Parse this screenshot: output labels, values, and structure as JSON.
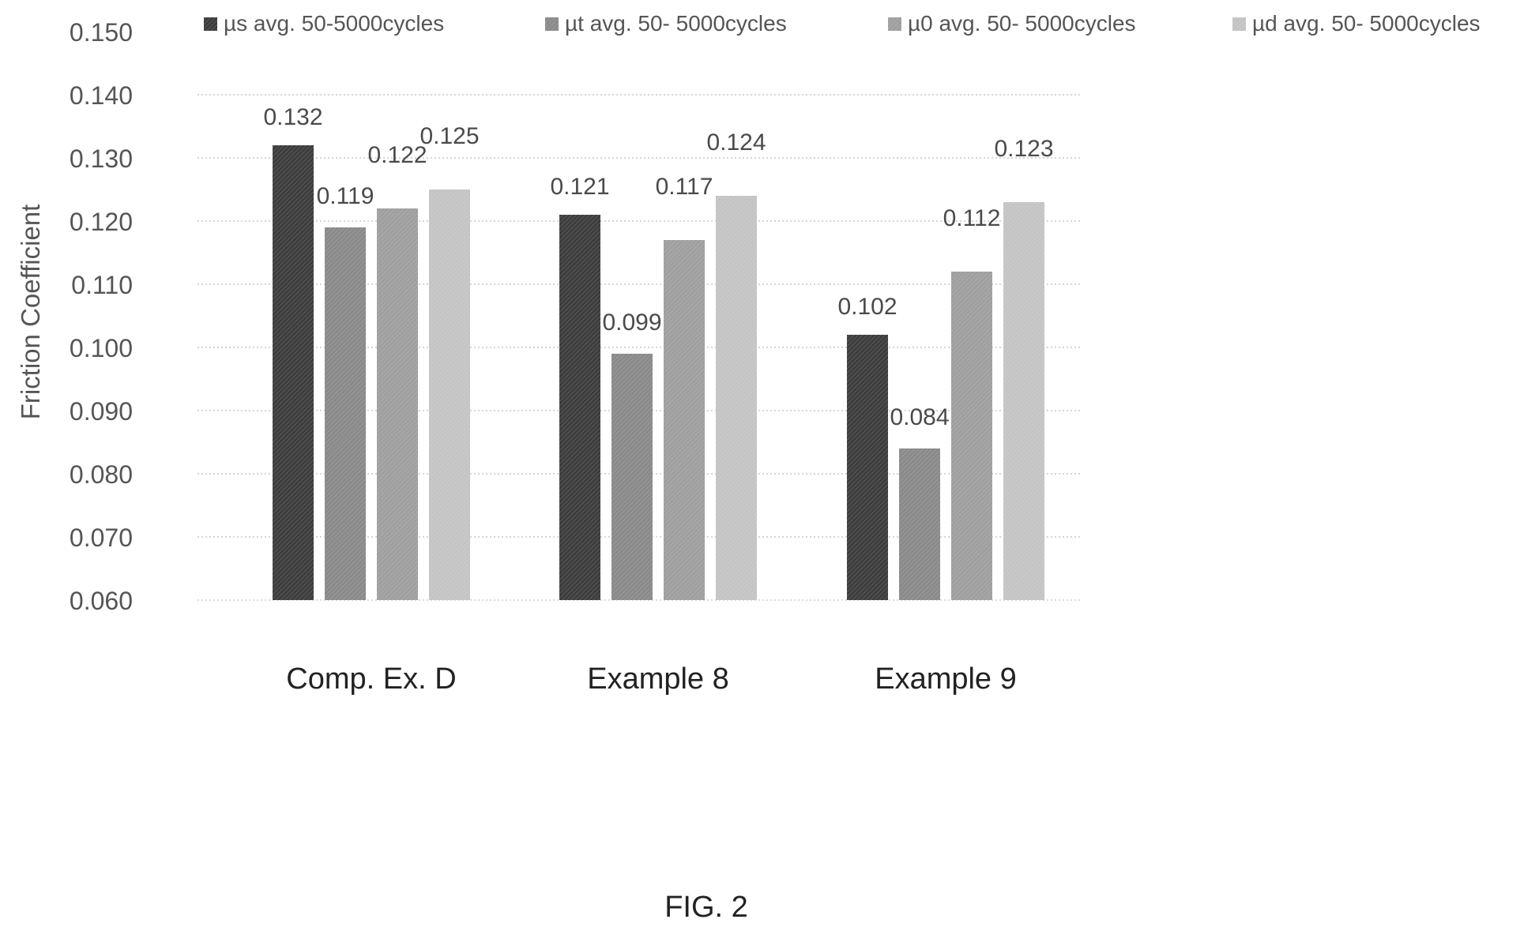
{
  "figure_caption": "FIG. 2",
  "chart_data": {
    "type": "bar",
    "title": "",
    "xlabel": "",
    "ylabel": "Friction Coefficient",
    "ylim": [
      0.06,
      0.15
    ],
    "yticks": [
      "0.060",
      "0.070",
      "0.080",
      "0.090",
      "0.100",
      "0.110",
      "0.120",
      "0.130",
      "0.140",
      "0.150"
    ],
    "grid": true,
    "legend_position": "top",
    "categories": [
      "Comp. Ex. D",
      "Example 8",
      "Example 9"
    ],
    "series": [
      {
        "name": "µs avg. 50-5000cycles",
        "color": "#3d3d3d",
        "values": [
          0.132,
          0.121,
          0.102
        ],
        "labels": [
          "0.132",
          "0.121",
          "0.102"
        ]
      },
      {
        "name": "µt avg. 50- 5000cycles",
        "color": "#8a8a8a",
        "values": [
          0.119,
          0.099,
          0.084
        ],
        "labels": [
          "0.119",
          "0.099",
          "0.084"
        ]
      },
      {
        "name": "µ0 avg. 50- 5000cycles",
        "color": "#9f9f9f",
        "values": [
          0.122,
          0.117,
          0.112
        ],
        "labels": [
          "0.122",
          "0.117",
          "0.112"
        ]
      },
      {
        "name": "µd avg. 50- 5000cycles",
        "color": "#c4c4c4",
        "values": [
          0.125,
          0.124,
          0.123
        ],
        "labels": [
          "0.125",
          "0.124",
          "0.123"
        ]
      }
    ]
  }
}
